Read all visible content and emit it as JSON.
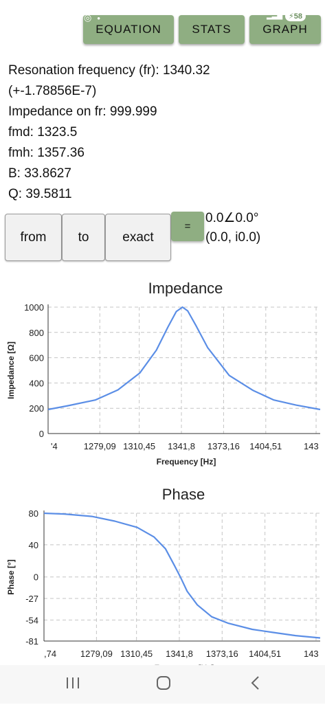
{
  "status_bar": {
    "battery": "58"
  },
  "toolbar": {
    "equation_label": "EQUATION",
    "stats_label": "STATS",
    "graph_label": "GRAPH"
  },
  "results": {
    "resonance_frequency": "Resonation frequency (fr): 1340.32",
    "resonance_error": "(+-1.78856E-7)",
    "impedance_on_fr": "Impedance on fr: 999.999",
    "fmd": "fmd: 1323.5",
    "fmh": "fmh: 1357.36",
    "b": "B: 33.8627",
    "q": "Q: 39.5811"
  },
  "input": {
    "from_label": "from",
    "to_label": "to",
    "exact_label": "exact",
    "equals_label": "=",
    "result_polar": "0.0∠0.0°",
    "result_complex": "(0.0, i0.0)"
  },
  "colors": {
    "accent": "#8fae82",
    "series": "#5b8ee6",
    "grid": "#c4c4c4"
  },
  "chart_data": [
    {
      "type": "line",
      "title": "Impedance",
      "xlabel": "Frequency [Hz]",
      "ylabel": "Impedance [Ω]",
      "x_tick_labels": [
        "'4",
        "1279,09",
        "1310,45",
        "1341,8",
        "1373,16",
        "1404,51",
        "143"
      ],
      "y_tick_labels": [
        "0",
        "200",
        "400",
        "600",
        "800",
        "1000"
      ],
      "xlim": [
        1246,
        1437
      ],
      "ylim": [
        0,
        1000
      ],
      "grid": true,
      "series": [
        {
          "x": [
            1246,
            1260,
            1279.09,
            1295,
            1310.45,
            1322,
            1330,
            1336,
            1340.32,
            1344,
            1350,
            1358,
            1373.16,
            1390,
            1404.51,
            1420,
            1437
          ],
          "values": [
            190,
            220,
            265,
            345,
            480,
            660,
            840,
            965,
            1000,
            970,
            850,
            680,
            460,
            340,
            265,
            225,
            190
          ]
        }
      ]
    },
    {
      "type": "line",
      "title": "Phase",
      "xlabel": "Frequency [Hz]",
      "ylabel": "Phase [°]",
      "x_tick_labels": [
        ",74",
        "1279,09",
        "1310,45",
        "1341,8",
        "1373,16",
        "1404,51",
        "143"
      ],
      "y_tick_labels": [
        "80",
        "40",
        "0",
        "-27",
        "-54",
        "-81"
      ],
      "xlim": [
        1246,
        1437
      ],
      "ylim": [
        -81,
        80
      ],
      "grid": true,
      "series": [
        {
          "x": [
            1246,
            1260,
            1279.09,
            1295,
            1310.45,
            1322,
            1330,
            1336,
            1340.32,
            1345,
            1352,
            1362,
            1373.16,
            1390,
            1404.51,
            1420,
            1437
          ],
          "values": [
            80,
            79,
            76,
            70,
            62,
            50,
            35,
            15,
            0,
            -18,
            -35,
            -50,
            -58,
            -66,
            -70,
            -74,
            -77
          ]
        }
      ]
    }
  ]
}
